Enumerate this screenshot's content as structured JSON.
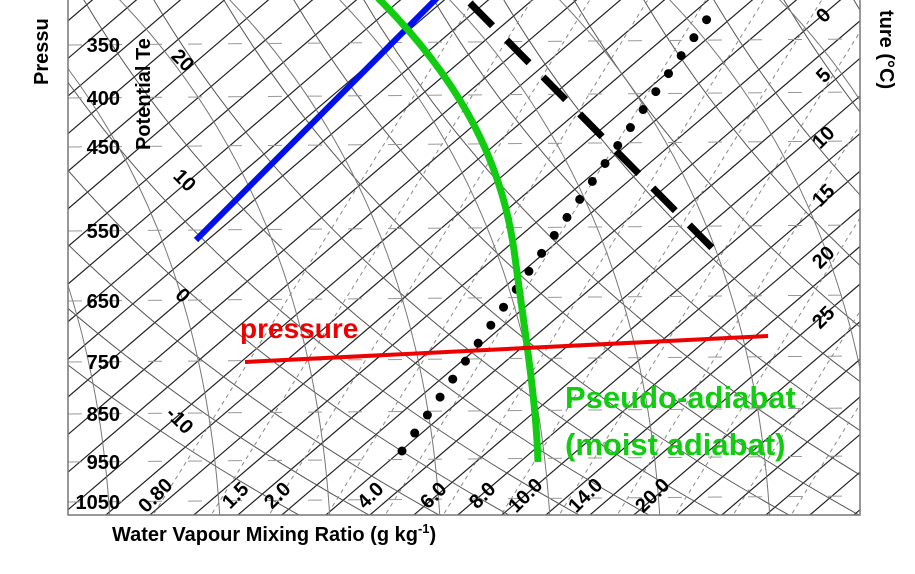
{
  "axes": {
    "pressure_title": "Pressu",
    "pressure_labels": [
      "350",
      "400",
      "450",
      "550",
      "650",
      "750",
      "850",
      "950",
      "1050"
    ],
    "potential_temperature_title": "Potential Te",
    "potential_temperature_labels": [
      "20",
      "10",
      "0",
      "-10"
    ],
    "temperature_title": "ture (°C)",
    "temperature_labels": [
      "0",
      "5",
      "10",
      "15",
      "20",
      "25"
    ],
    "mixing_ratio_labels": [
      "0.80",
      "1.5",
      "2.0",
      "4.0",
      "6.0",
      "8.0",
      "10.0",
      "14.0",
      "20.0"
    ],
    "mixing_ratio_title": "Water Vapour Mixing Ratio (g kg",
    "mixing_ratio_title_superscript": "-1",
    "mixing_ratio_title_end": ")"
  },
  "annotations": {
    "pressure": "pressure",
    "pseudo_adiabat": "Pseudo-adiabat",
    "moist_adiabat": "(moist adiabat)"
  }
}
